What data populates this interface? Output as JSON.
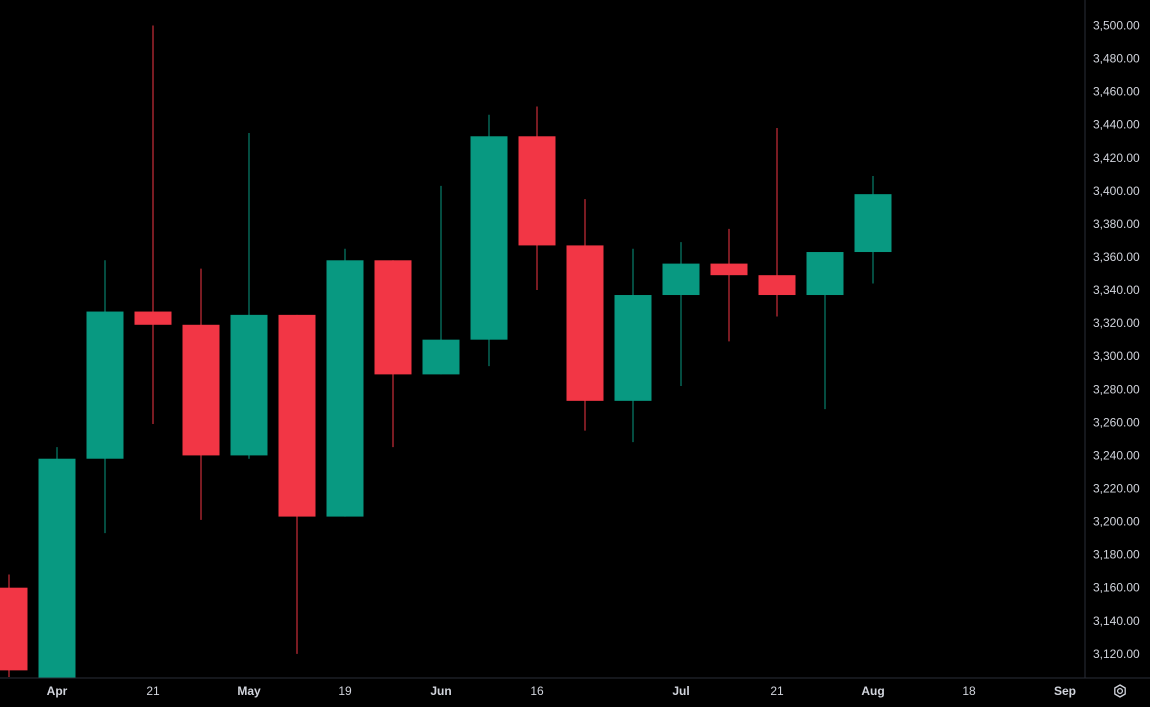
{
  "theme": {
    "background": "#000000",
    "up_color": "#089981",
    "down_color": "#f23645",
    "text_color": "#d1d4dc",
    "axis_line_color": "#2a2e39"
  },
  "chart_data": {
    "type": "candlestick",
    "interval": "weekly",
    "ylim": [
      3110,
      3506
    ],
    "yticks": [
      3120,
      3140,
      3160,
      3180,
      3200,
      3220,
      3240,
      3260,
      3280,
      3300,
      3320,
      3340,
      3360,
      3380,
      3400,
      3420,
      3440,
      3460,
      3480,
      3500
    ],
    "ytick_labels": [
      "3,120.00",
      "3,140.00",
      "3,160.00",
      "3,180.00",
      "3,200.00",
      "3,220.00",
      "3,240.00",
      "3,260.00",
      "3,280.00",
      "3,300.00",
      "3,320.00",
      "3,340.00",
      "3,360.00",
      "3,380.00",
      "3,400.00",
      "3,420.00",
      "3,440.00",
      "3,460.00",
      "3,480.00",
      "3,500.00"
    ],
    "x_ticks": [
      {
        "label": "Apr",
        "index": 1,
        "bold": true
      },
      {
        "label": "21",
        "index": 3,
        "bold": false
      },
      {
        "label": "May",
        "index": 5,
        "bold": true
      },
      {
        "label": "19",
        "index": 7,
        "bold": false
      },
      {
        "label": "Jun",
        "index": 9,
        "bold": true
      },
      {
        "label": "16",
        "index": 11,
        "bold": false
      },
      {
        "label": "Jul",
        "index": 14,
        "bold": true
      },
      {
        "label": "21",
        "index": 16,
        "bold": false
      },
      {
        "label": "Aug",
        "index": 18,
        "bold": true
      },
      {
        "label": "18",
        "index": 20,
        "bold": false
      },
      {
        "label": "Sep",
        "index": 22,
        "bold": true
      }
    ],
    "candles": [
      {
        "open": 3160,
        "high": 3168,
        "low": 3106,
        "close": 3110
      },
      {
        "open": 3100,
        "high": 3245,
        "low": 3100,
        "close": 3238
      },
      {
        "open": 3238,
        "high": 3358,
        "low": 3193,
        "close": 3327
      },
      {
        "open": 3327,
        "high": 3500,
        "low": 3259,
        "close": 3319
      },
      {
        "open": 3319,
        "high": 3353,
        "low": 3201,
        "close": 3240
      },
      {
        "open": 3240,
        "high": 3435,
        "low": 3238,
        "close": 3325
      },
      {
        "open": 3325,
        "high": 3325,
        "low": 3120,
        "close": 3203
      },
      {
        "open": 3203,
        "high": 3365,
        "low": 3203,
        "close": 3358
      },
      {
        "open": 3358,
        "high": 3358,
        "low": 3245,
        "close": 3289
      },
      {
        "open": 3289,
        "high": 3403,
        "low": 3289,
        "close": 3310
      },
      {
        "open": 3310,
        "high": 3446,
        "low": 3294,
        "close": 3433
      },
      {
        "open": 3433,
        "high": 3451,
        "low": 3340,
        "close": 3367
      },
      {
        "open": 3367,
        "high": 3395,
        "low": 3255,
        "close": 3273
      },
      {
        "open": 3273,
        "high": 3365,
        "low": 3248,
        "close": 3337
      },
      {
        "open": 3337,
        "high": 3369,
        "low": 3282,
        "close": 3356
      },
      {
        "open": 3356,
        "high": 3377,
        "low": 3309,
        "close": 3349
      },
      {
        "open": 3349,
        "high": 3438,
        "low": 3324,
        "close": 3337
      },
      {
        "open": 3337,
        "high": 3363,
        "low": 3268,
        "close": 3363
      },
      {
        "open": 3363,
        "high": 3409,
        "low": 3344,
        "close": 3398
      }
    ]
  },
  "toolbar": {
    "settings_icon": "gear-icon"
  }
}
